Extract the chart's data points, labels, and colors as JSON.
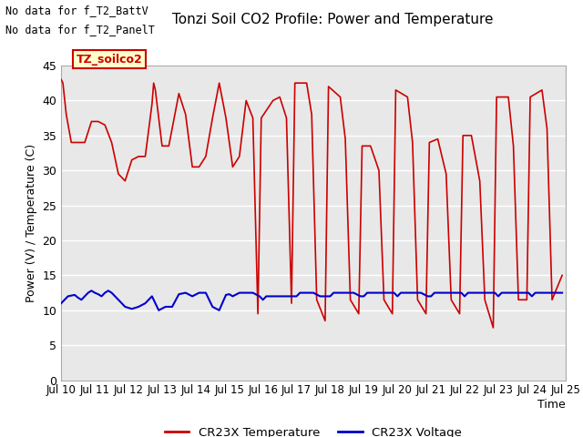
{
  "title": "Tonzi Soil CO2 Profile: Power and Temperature",
  "xlabel": "Time",
  "ylabel": "Power (V) / Temperature (C)",
  "xlim": [
    0,
    15
  ],
  "ylim": [
    0,
    45
  ],
  "yticks": [
    0,
    5,
    10,
    15,
    20,
    25,
    30,
    35,
    40,
    45
  ],
  "xtick_labels": [
    "Jul 10",
    "Jul 11",
    "Jul 12",
    "Jul 13",
    "Jul 14",
    "Jul 15",
    "Jul 16",
    "Jul 17",
    "Jul 18",
    "Jul 19",
    "Jul 20",
    "Jul 21",
    "Jul 22",
    "Jul 23",
    "Jul 24",
    "Jul 25"
  ],
  "legend_entries": [
    "CR23X Temperature",
    "CR23X Voltage"
  ],
  "legend_colors": [
    "#cc0000",
    "#0000cc"
  ],
  "annotations": [
    "No data for f_T2_BattV",
    "No data for f_T2_PanelT"
  ],
  "box_label": "TZ_soilco2",
  "bg_color": "#ffffff",
  "plot_bg_color": "#e8e8e8",
  "grid_color": "#ffffff",
  "temp_color": "#cc0000",
  "volt_color": "#0000cc",
  "temp_x": [
    0.0,
    0.05,
    0.15,
    0.3,
    0.5,
    0.7,
    0.9,
    1.1,
    1.3,
    1.5,
    1.7,
    1.9,
    2.1,
    2.3,
    2.5,
    2.7,
    2.75,
    2.8,
    3.0,
    3.2,
    3.5,
    3.7,
    3.9,
    4.1,
    4.3,
    4.5,
    4.7,
    4.9,
    5.1,
    5.3,
    5.5,
    5.7,
    5.85,
    5.95,
    6.3,
    6.5,
    6.7,
    6.85,
    6.95,
    7.3,
    7.45,
    7.6,
    7.85,
    7.95,
    8.3,
    8.45,
    8.6,
    8.85,
    8.95,
    9.2,
    9.45,
    9.6,
    9.85,
    9.95,
    10.3,
    10.45,
    10.6,
    10.85,
    10.95,
    11.2,
    11.45,
    11.6,
    11.85,
    11.95,
    12.2,
    12.45,
    12.6,
    12.85,
    12.95,
    13.3,
    13.45,
    13.6,
    13.85,
    13.95,
    14.3,
    14.45,
    14.6,
    14.9
  ],
  "temp_y": [
    43.0,
    42.5,
    38.0,
    34.0,
    34.0,
    34.0,
    37.0,
    37.0,
    36.5,
    34.0,
    29.5,
    28.5,
    31.5,
    32.0,
    32.0,
    39.5,
    42.5,
    41.5,
    33.5,
    33.5,
    41.0,
    38.0,
    30.5,
    30.5,
    32.0,
    37.5,
    42.5,
    37.5,
    30.5,
    32.0,
    40.0,
    37.5,
    9.5,
    37.5,
    40.0,
    40.5,
    37.5,
    11.0,
    42.5,
    42.5,
    38.0,
    11.5,
    8.5,
    42.0,
    40.5,
    34.5,
    11.5,
    9.5,
    33.5,
    33.5,
    30.0,
    11.5,
    9.5,
    41.5,
    40.5,
    34.0,
    11.5,
    9.5,
    34.0,
    34.5,
    29.5,
    11.5,
    9.5,
    35.0,
    35.0,
    28.5,
    11.5,
    7.5,
    40.5,
    40.5,
    33.5,
    11.5,
    11.5,
    40.5,
    41.5,
    36.0,
    11.5,
    15.0
  ],
  "volt_x": [
    0.0,
    0.2,
    0.4,
    0.5,
    0.6,
    0.7,
    0.8,
    0.9,
    1.0,
    1.1,
    1.2,
    1.3,
    1.4,
    1.5,
    1.7,
    1.9,
    2.1,
    2.3,
    2.5,
    2.7,
    2.9,
    3.1,
    3.3,
    3.5,
    3.7,
    3.9,
    4.1,
    4.3,
    4.5,
    4.7,
    4.9,
    5.0,
    5.1,
    5.3,
    5.5,
    5.7,
    5.9,
    6.0,
    6.1,
    6.3,
    6.5,
    6.7,
    6.9,
    7.0,
    7.1,
    7.3,
    7.5,
    7.7,
    7.9,
    8.0,
    8.1,
    8.3,
    8.5,
    8.7,
    8.9,
    9.0,
    9.1,
    9.3,
    9.5,
    9.7,
    9.9,
    10.0,
    10.1,
    10.3,
    10.5,
    10.7,
    10.9,
    11.0,
    11.1,
    11.3,
    11.5,
    11.7,
    11.9,
    12.0,
    12.1,
    12.3,
    12.5,
    12.7,
    12.9,
    13.0,
    13.1,
    13.3,
    13.5,
    13.7,
    13.9,
    14.0,
    14.1,
    14.3,
    14.5,
    14.7,
    14.9
  ],
  "volt_y": [
    11.0,
    12.0,
    12.2,
    11.8,
    11.5,
    12.0,
    12.5,
    12.8,
    12.5,
    12.3,
    12.0,
    12.5,
    12.8,
    12.5,
    11.5,
    10.5,
    10.2,
    10.5,
    11.0,
    12.0,
    10.0,
    10.5,
    10.5,
    12.3,
    12.5,
    12.0,
    12.5,
    12.5,
    10.5,
    10.0,
    12.2,
    12.3,
    12.0,
    12.5,
    12.5,
    12.5,
    12.0,
    11.5,
    12.0,
    12.0,
    12.0,
    12.0,
    12.0,
    12.0,
    12.5,
    12.5,
    12.5,
    12.0,
    12.0,
    12.0,
    12.5,
    12.5,
    12.5,
    12.5,
    12.0,
    12.0,
    12.5,
    12.5,
    12.5,
    12.5,
    12.5,
    12.0,
    12.5,
    12.5,
    12.5,
    12.5,
    12.0,
    12.0,
    12.5,
    12.5,
    12.5,
    12.5,
    12.5,
    12.0,
    12.5,
    12.5,
    12.5,
    12.5,
    12.5,
    12.0,
    12.5,
    12.5,
    12.5,
    12.5,
    12.5,
    12.0,
    12.5,
    12.5,
    12.5,
    12.5,
    12.5
  ]
}
